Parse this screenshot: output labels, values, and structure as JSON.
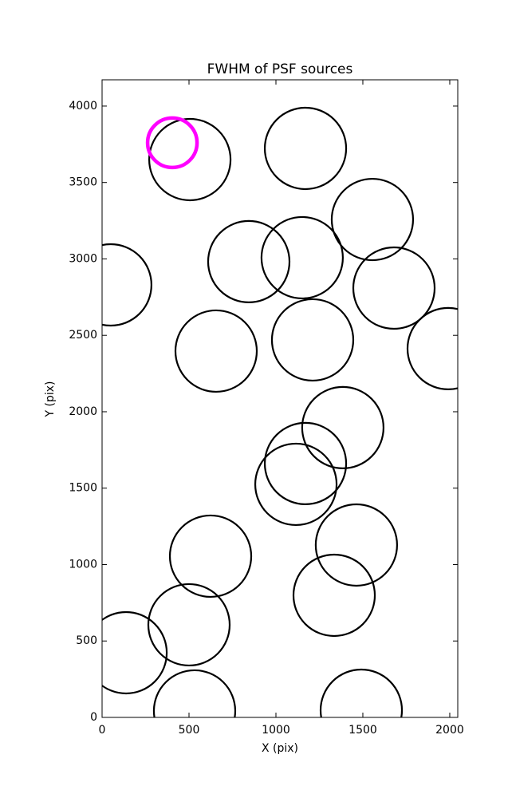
{
  "chart_data": {
    "type": "scatter",
    "title": "FWHM of PSF sources",
    "x_label": "X (pix)",
    "y_label": "Y (pix)",
    "xlim": [
      0,
      2046
    ],
    "ylim": [
      0,
      4172
    ],
    "xticks": [
      0,
      500,
      1000,
      1500,
      2000
    ],
    "yticks": [
      0,
      500,
      1000,
      1500,
      2000,
      2500,
      3000,
      3500,
      4000
    ],
    "series": [
      {
        "color": "#000000",
        "x": [
          505,
          1170,
          1555,
          844,
          1151,
          1679,
          50,
          656,
          1211,
          1991,
          1385,
          1170,
          1115,
          624,
          1463,
          1335,
          500,
          138,
          532,
          1491
        ],
        "values": [
          3650,
          3723,
          3258,
          2982,
          3008,
          2809,
          2830,
          2397,
          2470,
          2413,
          1896,
          1661,
          1525,
          1055,
          1128,
          799,
          606,
          423,
          42,
          47
        ]
      },
      {
        "color": "#ff00ff",
        "x": [
          404
        ],
        "values": [
          3760
        ]
      }
    ]
  }
}
